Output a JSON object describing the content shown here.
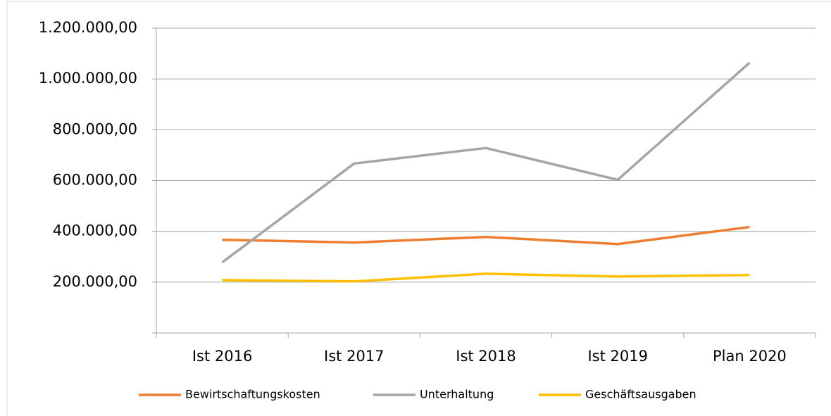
{
  "chart_data": {
    "type": "line",
    "categories": [
      "Ist 2016",
      "Ist 2017",
      "Ist 2018",
      "Ist 2019",
      "Plan 2020"
    ],
    "series": [
      {
        "name": "Bewirtschaftungskosten",
        "color": "#ed7d31",
        "values": [
          367000,
          356000,
          378000,
          350000,
          417000
        ]
      },
      {
        "name": "Unterhaltung",
        "color": "#a5a5a5",
        "values": [
          278000,
          667000,
          728000,
          603000,
          1064000
        ]
      },
      {
        "name": "Geschäftsausgaben",
        "color": "#ffc000",
        "values": [
          208000,
          203000,
          233000,
          222000,
          228000
        ]
      }
    ],
    "ylim": [
      0,
      1200000
    ],
    "yticks": [
      {
        "value": 200000,
        "label": "200.000,00"
      },
      {
        "value": 400000,
        "label": "400.000,00"
      },
      {
        "value": 600000,
        "label": "600.000,00"
      },
      {
        "value": 800000,
        "label": "800.000,00"
      },
      {
        "value": 1000000,
        "label": "1.000.000,00"
      },
      {
        "value": 1200000,
        "label": "1.200.000,00"
      }
    ],
    "grid": true,
    "legend": "bottom"
  }
}
